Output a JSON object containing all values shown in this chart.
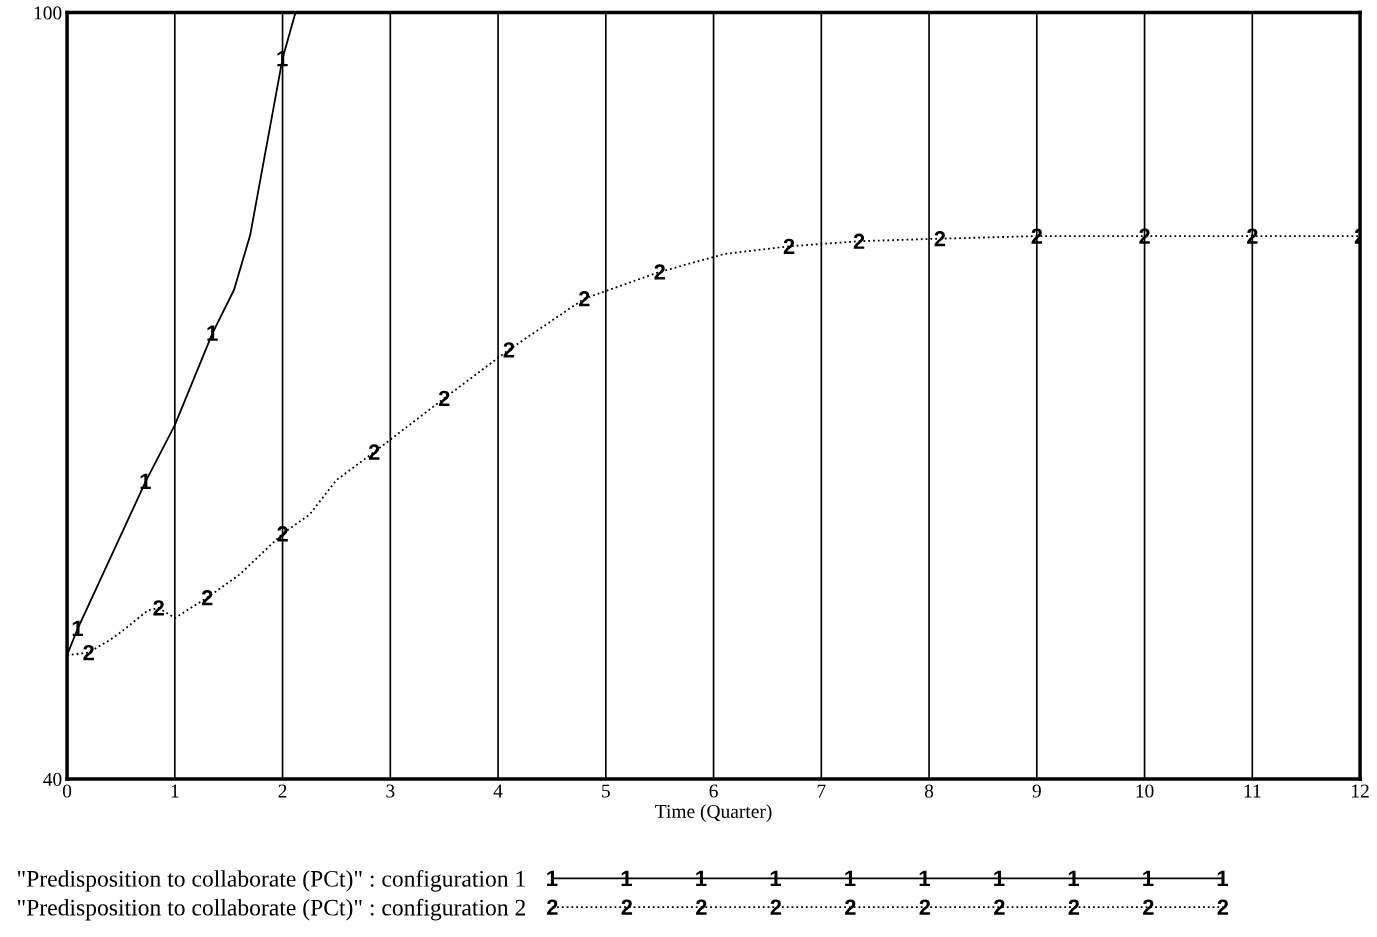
{
  "chart_data": {
    "type": "line",
    "xlabel": "Time (Quarter)",
    "xlim": [
      0,
      12
    ],
    "xticks": [
      0,
      1,
      2,
      3,
      4,
      5,
      6,
      7,
      8,
      9,
      10,
      11,
      12
    ],
    "ylim": [
      40,
      100
    ],
    "yticks": [
      40,
      100
    ],
    "grid": "x",
    "legend": "bottom",
    "series": [
      {
        "name": "\"Predisposition to collaborate (PCt)\" : configuration 1",
        "color": "#000000",
        "line_style": "solid",
        "x": [
          0,
          0.1,
          0.73,
          1,
          1.35,
          1.55,
          1.7,
          2,
          2.12
        ],
        "values": [
          49.7,
          51.8,
          63.3,
          67.7,
          74.9,
          78.3,
          82.6,
          96.4,
          100
        ]
      },
      {
        "name": "\"Predisposition to collaborate (PCt)\" : configuration 2",
        "color": "#000000",
        "line_style": "dotted",
        "x": [
          0,
          0.2,
          0.4,
          0.5,
          0.75,
          0.85,
          1,
          1.3,
          1.6,
          2,
          2.25,
          2.5,
          2.85,
          3.5,
          4.1,
          4.8,
          5.5,
          6.1,
          6.7,
          7.35,
          8.1,
          9,
          10,
          11,
          12
        ],
        "values": [
          49.7,
          49.9,
          50.9,
          51.5,
          53.2,
          53.4,
          52.6,
          54.2,
          56.0,
          59.2,
          60.7,
          63.4,
          65.6,
          69.8,
          73.6,
          77.6,
          79.7,
          81.1,
          81.7,
          82.1,
          82.3,
          82.5,
          82.5,
          82.5,
          82.5
        ]
      }
    ]
  }
}
